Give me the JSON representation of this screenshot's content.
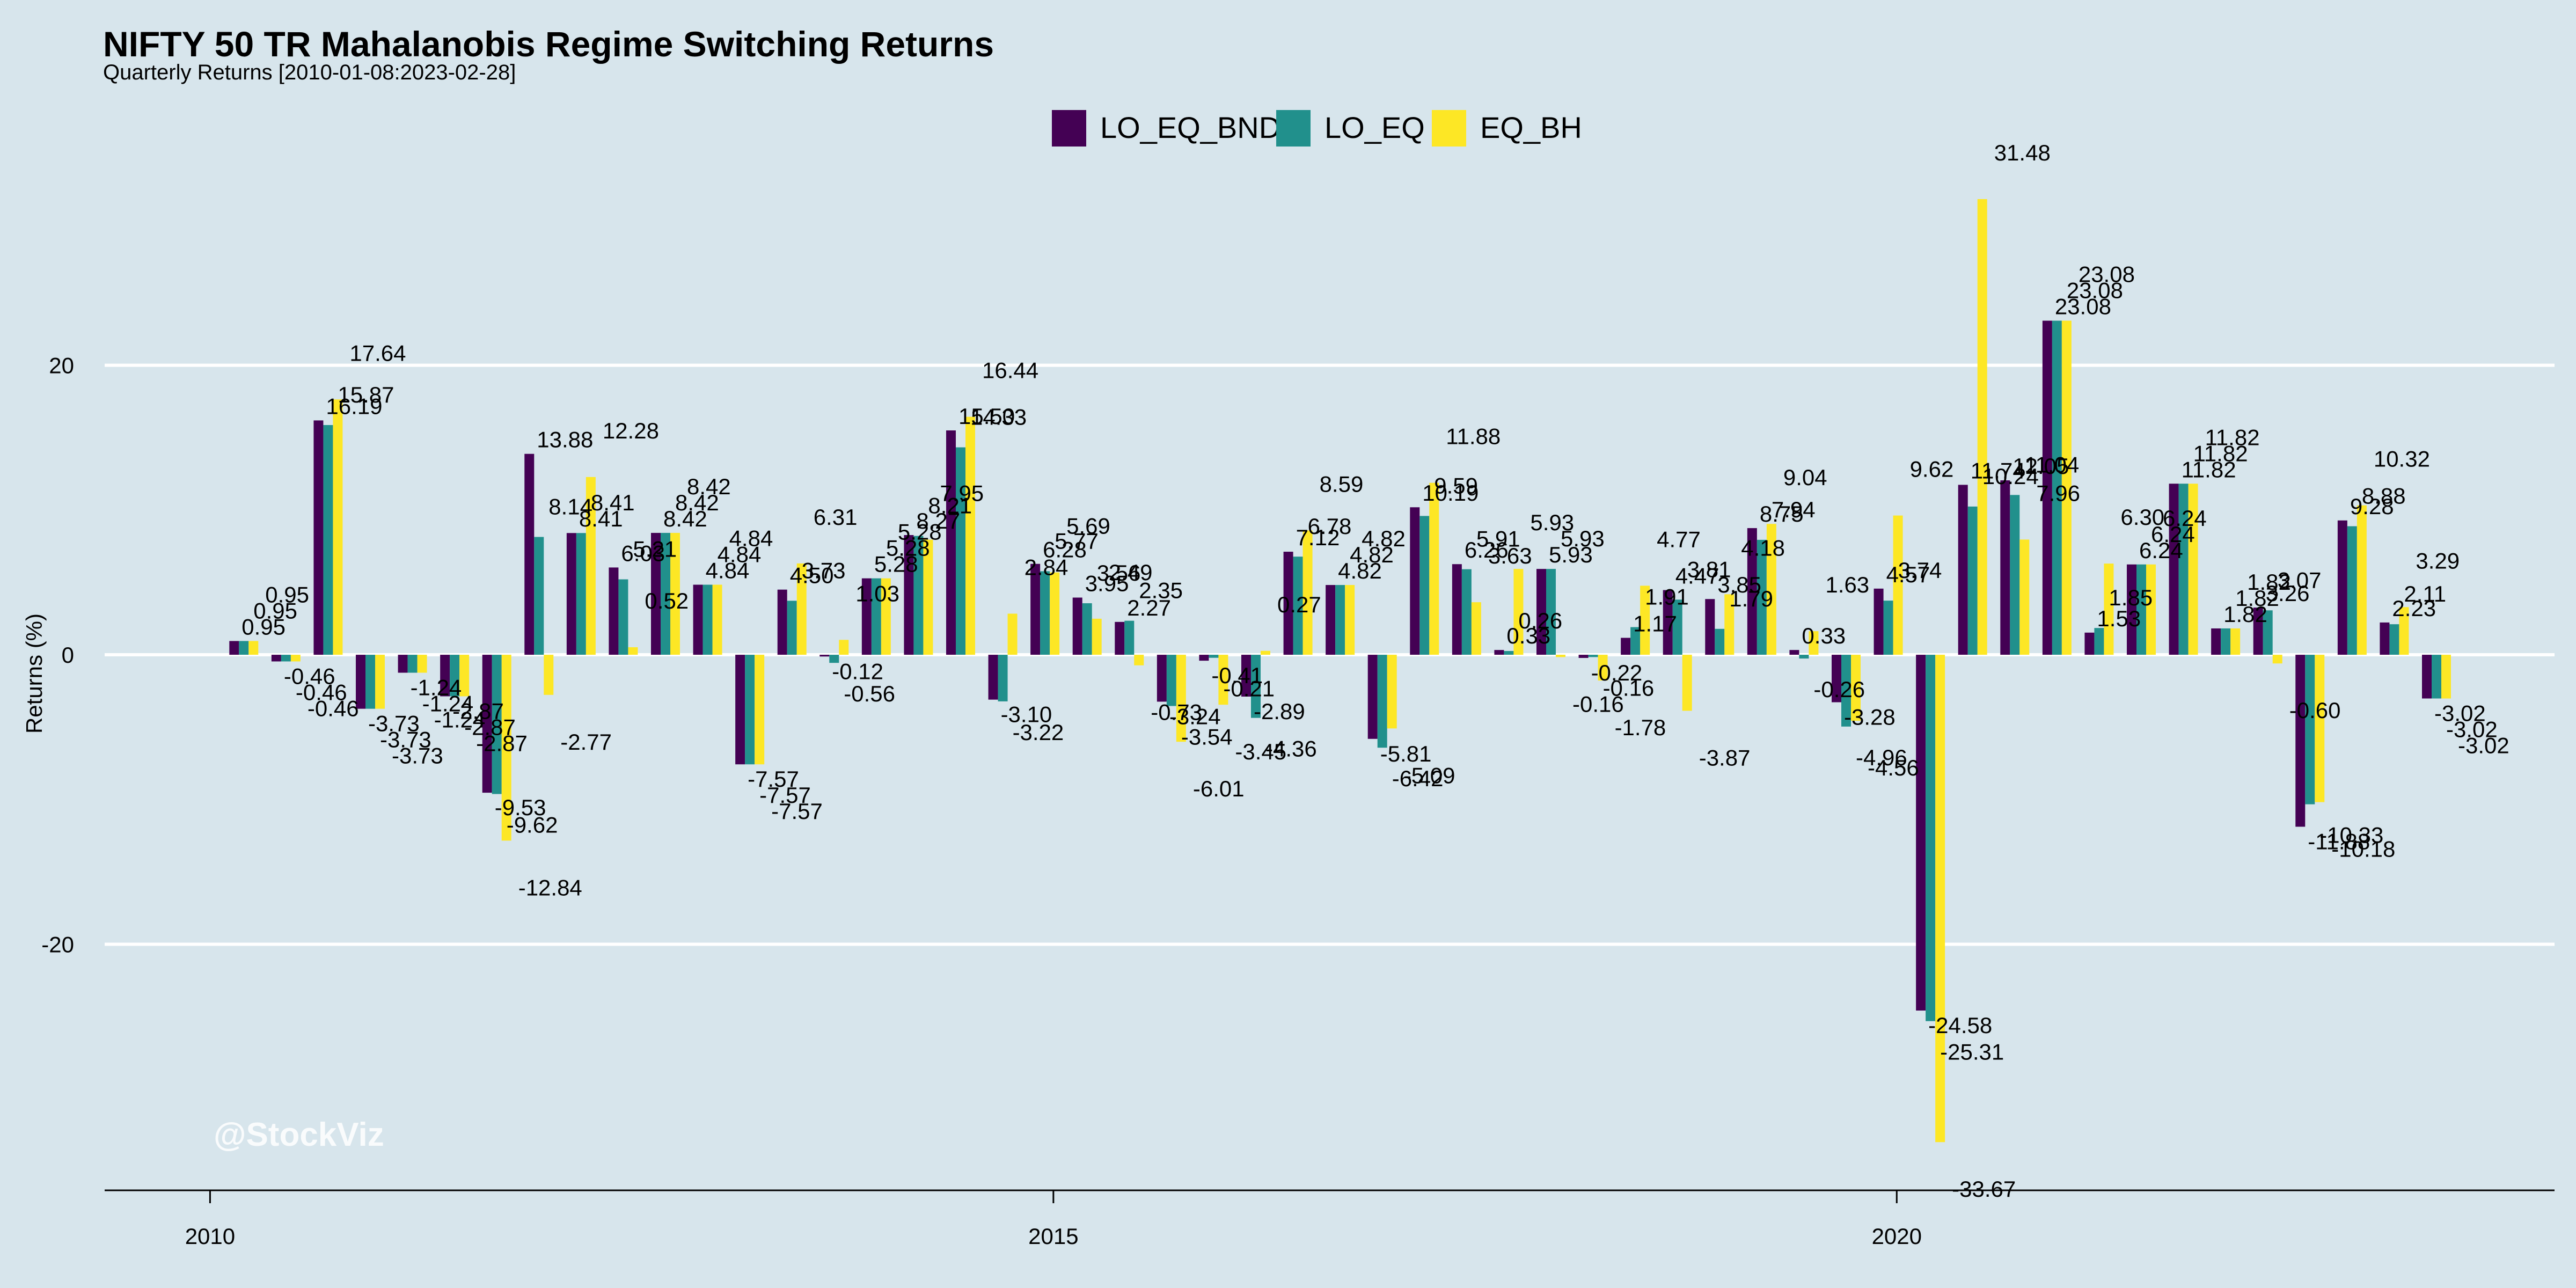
{
  "chart_data": {
    "type": "bar",
    "title": "NIFTY 50 TR Mahalanobis Regime Switching Returns",
    "subtitle": "Quarterly Returns [2010-01-08:2023-02-28]",
    "ylabel": "Returns (%)",
    "xlabel": "",
    "watermark": "@StockViz",
    "ylim": [
      -37,
      33
    ],
    "xlim": [
      2009.375,
      2023.9
    ],
    "yticks": [
      -20,
      0,
      20
    ],
    "xticks": [
      2010,
      2015,
      2020
    ],
    "grid": true,
    "legend_position": "top",
    "x": [
      2010.2,
      2010.45,
      2010.7,
      2010.95,
      2011.2,
      2011.45,
      2011.7,
      2011.95,
      2012.2,
      2012.45,
      2012.7,
      2012.95,
      2013.2,
      2013.45,
      2013.7,
      2013.95,
      2014.2,
      2014.45,
      2014.7,
      2014.95,
      2015.2,
      2015.45,
      2015.7,
      2015.95,
      2016.2,
      2016.45,
      2016.7,
      2016.95,
      2017.2,
      2017.45,
      2017.7,
      2017.95,
      2018.2,
      2018.45,
      2018.7,
      2018.95,
      2019.2,
      2019.45,
      2019.7,
      2019.95,
      2020.2,
      2020.45,
      2020.7,
      2020.95,
      2021.2,
      2021.45,
      2021.7,
      2021.95,
      2022.2,
      2022.45,
      2022.7,
      2022.95,
      2023.2
    ],
    "series": [
      {
        "name": "LO_EQ_BND",
        "color": "#440154",
        "values": [
          0.95,
          -0.46,
          16.19,
          -3.73,
          -1.24,
          -2.87,
          -9.53,
          13.88,
          8.41,
          6.03,
          8.42,
          4.84,
          -7.57,
          4.5,
          -0.12,
          5.28,
          8.27,
          15.5,
          -3.1,
          6.28,
          3.95,
          2.27,
          -3.24,
          -0.41,
          -2.89,
          7.12,
          4.82,
          -5.81,
          10.19,
          6.26,
          0.33,
          5.93,
          -0.22,
          1.17,
          4.47,
          3.85,
          8.75,
          0.33,
          -3.28,
          4.57,
          -24.58,
          11.74,
          12.05,
          23.08,
          1.53,
          6.24,
          11.82,
          1.82,
          3.26,
          -11.88,
          9.28,
          2.23,
          -3.02
        ]
      },
      {
        "name": "LO_EQ",
        "color": "#21908c",
        "values": [
          0.95,
          -0.46,
          15.87,
          -3.73,
          -1.24,
          -2.87,
          -9.62,
          8.14,
          8.41,
          5.21,
          8.42,
          4.84,
          -7.57,
          3.73,
          -0.56,
          5.28,
          8.21,
          14.33,
          -3.22,
          5.77,
          3.56,
          2.35,
          -3.54,
          -0.21,
          -4.36,
          6.78,
          4.82,
          -6.42,
          9.59,
          5.91,
          0.26,
          5.93,
          -0.16,
          1.91,
          3.81,
          1.79,
          7.94,
          -0.26,
          -4.96,
          3.74,
          -25.31,
          10.24,
          11.04,
          23.08,
          1.85,
          6.24,
          11.82,
          1.82,
          3.07,
          -10.33,
          8.88,
          2.11,
          -3.02
        ]
      },
      {
        "name": "EQ_BH",
        "color": "#fde725",
        "values": [
          0.95,
          -0.46,
          17.64,
          -3.73,
          -1.24,
          -2.87,
          -12.84,
          -2.77,
          12.28,
          0.52,
          8.42,
          4.84,
          -7.57,
          6.31,
          1.03,
          5.28,
          7.95,
          16.44,
          2.84,
          5.69,
          2.49,
          -0.73,
          -6.01,
          -3.45,
          0.27,
          8.59,
          4.82,
          -5.09,
          11.88,
          3.63,
          5.93,
          -0.16,
          -1.78,
          4.77,
          -3.87,
          4.18,
          9.04,
          1.63,
          -4.56,
          9.62,
          -33.67,
          31.48,
          7.96,
          23.08,
          6.3,
          6.24,
          11.82,
          1.82,
          -0.6,
          -10.18,
          10.32,
          3.29,
          -3.02
        ]
      }
    ]
  }
}
